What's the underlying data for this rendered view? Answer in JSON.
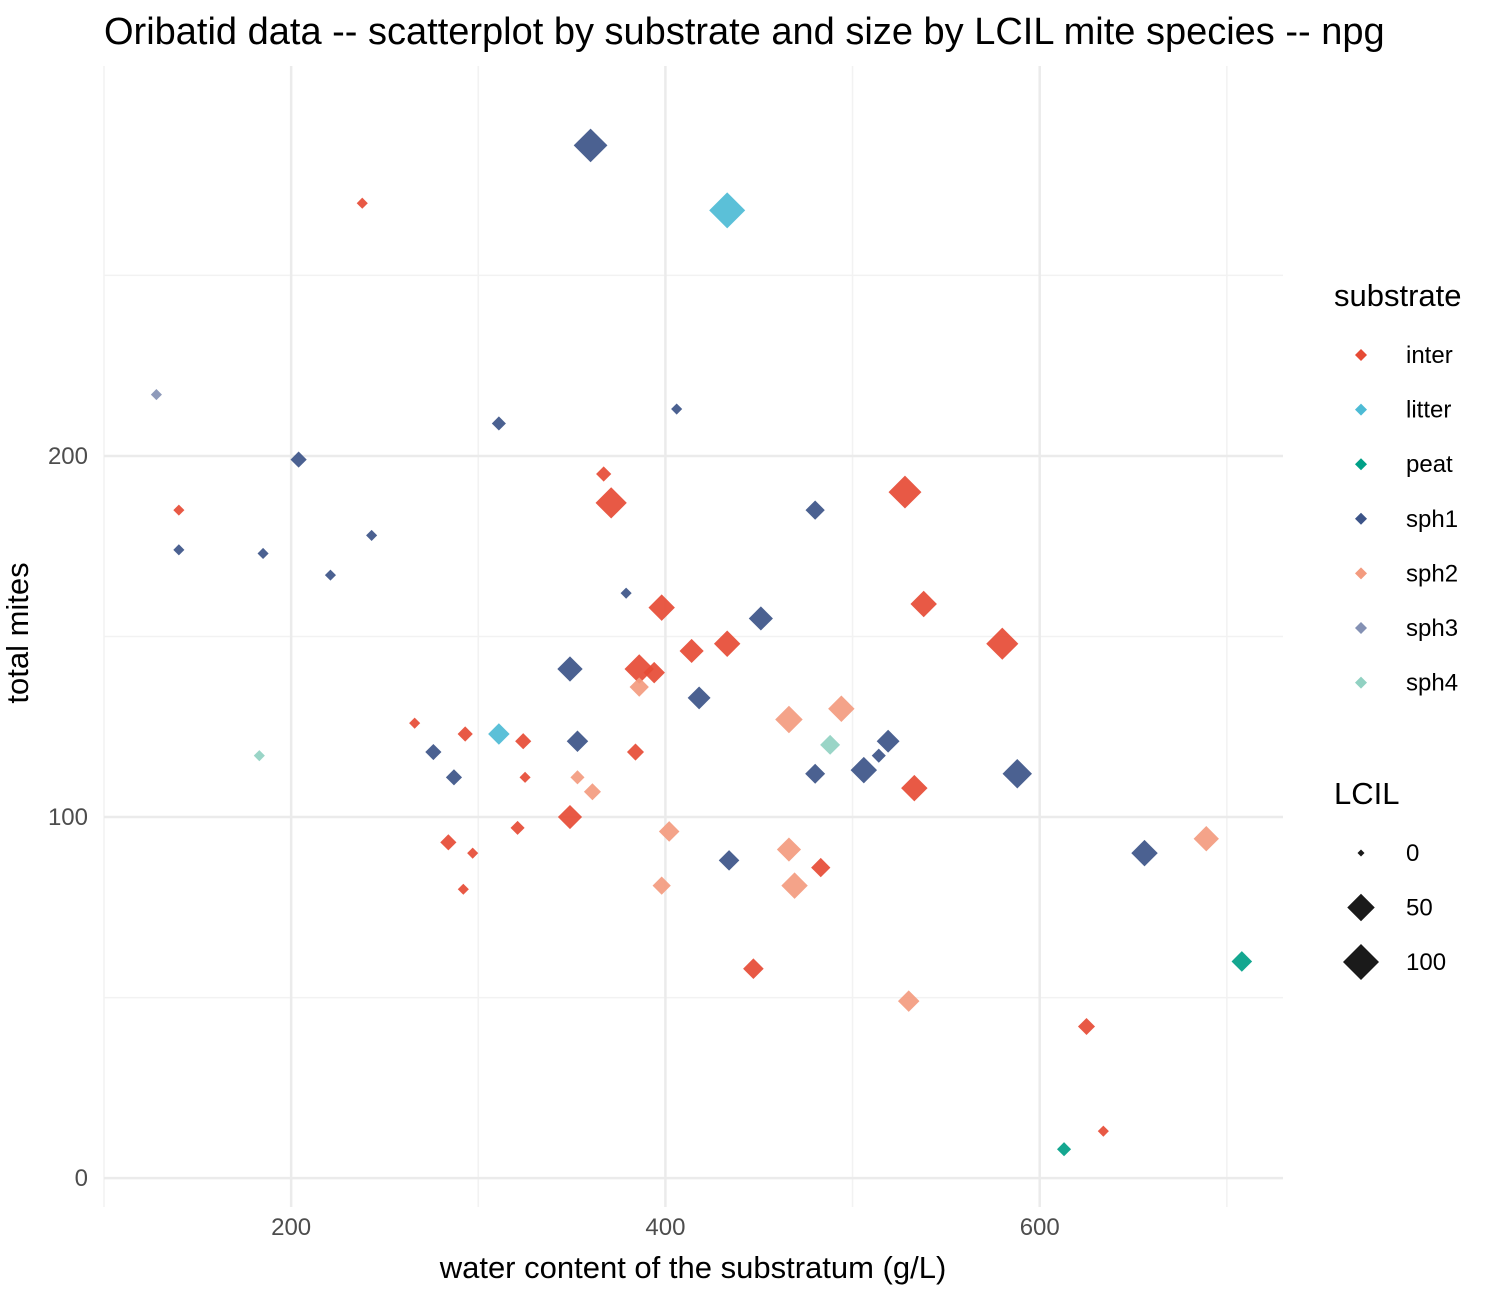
{
  "chart_data": {
    "type": "scatter",
    "title": "Oribatid data -- scatterplot by substrate and size by LCIL mite species -- npg",
    "xlabel": "water content of the substratum (g/L)",
    "ylabel": "total mites",
    "xlim": [
      100,
      730
    ],
    "ylim": [
      -8,
      308
    ],
    "x_ticks": [
      200,
      400,
      600
    ],
    "y_ticks": [
      0,
      100,
      200
    ],
    "grid": true,
    "marker": "diamond",
    "legend_position": "right",
    "color_legend": {
      "title": "substrate",
      "entries": [
        {
          "name": "inter",
          "color": "#E64B35"
        },
        {
          "name": "litter",
          "color": "#4DBBD5"
        },
        {
          "name": "peat",
          "color": "#00A087"
        },
        {
          "name": "sph1",
          "color": "#3C5488"
        },
        {
          "name": "sph2",
          "color": "#F39B7F"
        },
        {
          "name": "sph3",
          "color": "#8491B4"
        },
        {
          "name": "sph4",
          "color": "#91D1C2"
        }
      ]
    },
    "size_legend": {
      "title": "LCIL",
      "entries": [
        {
          "label": "0",
          "value": 0
        },
        {
          "label": "50",
          "value": 50
        },
        {
          "label": "100",
          "value": 100
        }
      ]
    },
    "series": [
      {
        "name": "inter",
        "points": [
          [
            238,
            270,
            2
          ],
          [
            140,
            185,
            2
          ],
          [
            367,
            195,
            8
          ],
          [
            371,
            187,
            70
          ],
          [
            398,
            158,
            45
          ],
          [
            414,
            146,
            35
          ],
          [
            433,
            148,
            45
          ],
          [
            386,
            141,
            60
          ],
          [
            394,
            140,
            25
          ],
          [
            528,
            190,
            80
          ],
          [
            538,
            159,
            45
          ],
          [
            580,
            148,
            75
          ],
          [
            266,
            126,
            2
          ],
          [
            293,
            123,
            8
          ],
          [
            324,
            121,
            10
          ],
          [
            325,
            111,
            2
          ],
          [
            384,
            118,
            12
          ],
          [
            349,
            100,
            35
          ],
          [
            533,
            108,
            45
          ],
          [
            284,
            93,
            10
          ],
          [
            297,
            90,
            2
          ],
          [
            321,
            97,
            6
          ],
          [
            292,
            80,
            2
          ],
          [
            483,
            86,
            18
          ],
          [
            447,
            58,
            22
          ],
          [
            625,
            42,
            12
          ],
          [
            634,
            13,
            2
          ]
        ]
      },
      {
        "name": "litter",
        "points": [
          [
            433,
            268,
            100
          ],
          [
            311,
            123,
            25
          ]
        ]
      },
      {
        "name": "peat",
        "points": [
          [
            613,
            8,
            6
          ],
          [
            708,
            60,
            22
          ]
        ]
      },
      {
        "name": "sph1",
        "points": [
          [
            360,
            286,
            85
          ],
          [
            204,
            199,
            10
          ],
          [
            311,
            209,
            6
          ],
          [
            406,
            213,
            2
          ],
          [
            480,
            185,
            18
          ],
          [
            140,
            174,
            2
          ],
          [
            185,
            173,
            2
          ],
          [
            243,
            178,
            2
          ],
          [
            221,
            167,
            2
          ],
          [
            379,
            162,
            2
          ],
          [
            451,
            155,
            35
          ],
          [
            349,
            141,
            40
          ],
          [
            418,
            133,
            30
          ],
          [
            353,
            121,
            25
          ],
          [
            276,
            118,
            10
          ],
          [
            287,
            111,
            10
          ],
          [
            480,
            112,
            20
          ],
          [
            506,
            113,
            45
          ],
          [
            519,
            121,
            30
          ],
          [
            514,
            117,
            6
          ],
          [
            588,
            112,
            60
          ],
          [
            434,
            88,
            22
          ],
          [
            656,
            90,
            45
          ]
        ]
      },
      {
        "name": "sph2",
        "points": [
          [
            386,
            136,
            18
          ],
          [
            466,
            127,
            50
          ],
          [
            494,
            130,
            45
          ],
          [
            353,
            111,
            6
          ],
          [
            361,
            107,
            12
          ],
          [
            402,
            96,
            22
          ],
          [
            398,
            81,
            15
          ],
          [
            466,
            91,
            35
          ],
          [
            469,
            81,
            45
          ],
          [
            530,
            49,
            25
          ],
          [
            689,
            94,
            40
          ]
        ]
      },
      {
        "name": "sph3",
        "points": [
          [
            128,
            217,
            2
          ]
        ]
      },
      {
        "name": "sph4",
        "points": [
          [
            183,
            117,
            2
          ],
          [
            488,
            120,
            20
          ]
        ]
      }
    ]
  }
}
